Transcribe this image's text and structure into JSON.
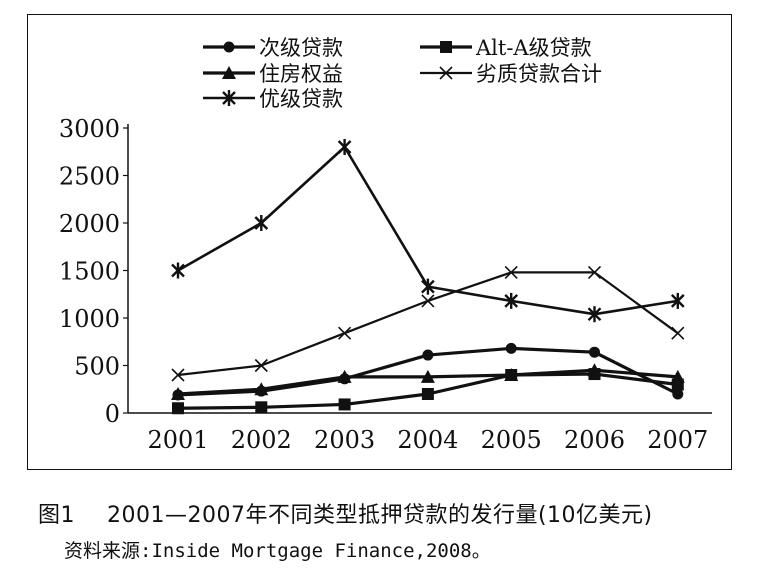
{
  "chart_data": {
    "type": "line",
    "categories": [
      "2001",
      "2002",
      "2003",
      "2004",
      "2005",
      "2006",
      "2007"
    ],
    "ylim": [
      0,
      3000
    ],
    "yticks": [
      0,
      500,
      1000,
      1500,
      2000,
      2500,
      3000
    ],
    "grid": false,
    "legend_position": "top",
    "series": [
      {
        "name": "次级贷款",
        "marker": "circle",
        "values": [
          190,
          230,
          360,
          610,
          680,
          640,
          200
        ]
      },
      {
        "name": "Alt-A级贷款",
        "marker": "square",
        "values": [
          50,
          60,
          90,
          200,
          400,
          410,
          300
        ]
      },
      {
        "name": "住房权益",
        "marker": "triangle",
        "values": [
          200,
          250,
          380,
          380,
          400,
          450,
          380
        ]
      },
      {
        "name": "劣质贷款合计",
        "marker": "x",
        "values": [
          400,
          500,
          840,
          1180,
          1480,
          1480,
          840
        ]
      },
      {
        "name": "优级贷款",
        "marker": "star",
        "values": [
          1500,
          2000,
          2800,
          1330,
          1180,
          1040,
          1180
        ]
      }
    ]
  },
  "caption": {
    "figure_label": "图1",
    "title": "2001—2007年不同类型抵押贷款的发行量(10亿美元)"
  },
  "source_note": "资料来源:Inside Mortgage Finance,2008。"
}
